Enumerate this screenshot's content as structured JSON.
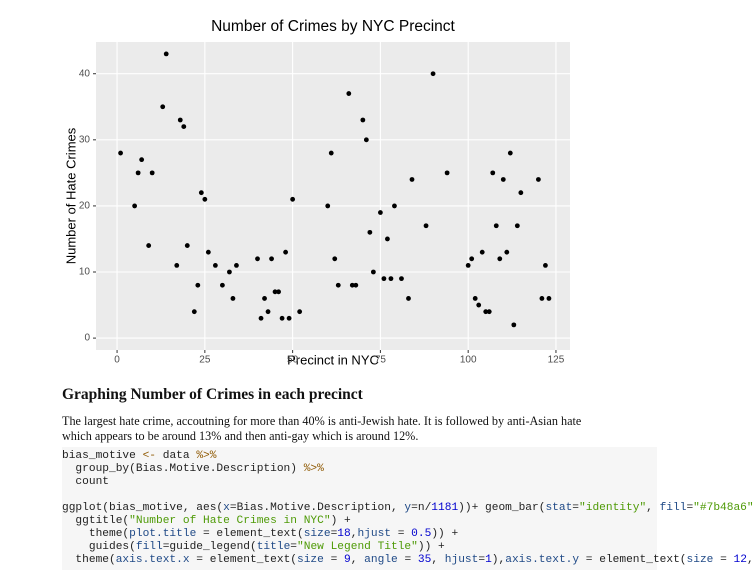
{
  "chart_data": {
    "type": "scatter",
    "title": "Number of Crimes by NYC Precinct",
    "x_label": "Precinct in NYC",
    "y_label": "Number of Hate Crimes",
    "x": [
      1,
      5,
      6,
      7,
      9,
      10,
      13,
      14,
      17,
      18,
      19,
      20,
      22,
      23,
      24,
      25,
      26,
      28,
      30,
      32,
      33,
      34,
      40,
      41,
      42,
      43,
      44,
      45,
      46,
      47,
      48,
      49,
      50,
      52,
      60,
      61,
      62,
      63,
      66,
      67,
      68,
      70,
      71,
      72,
      73,
      75,
      76,
      77,
      78,
      79,
      81,
      83,
      84,
      88,
      90,
      94,
      100,
      101,
      102,
      103,
      104,
      105,
      106,
      107,
      108,
      109,
      110,
      111,
      112,
      113,
      114,
      115,
      120,
      121,
      122,
      123
    ],
    "y": [
      28,
      20,
      25,
      27,
      14,
      25,
      35,
      43,
      11,
      33,
      32,
      14,
      4,
      8,
      22,
      21,
      13,
      11,
      8,
      10,
      6,
      11,
      12,
      3,
      6,
      4,
      12,
      7,
      7,
      3,
      13,
      3,
      21,
      4,
      20,
      28,
      12,
      8,
      37,
      8,
      8,
      33,
      30,
      16,
      10,
      19,
      9,
      15,
      9,
      20,
      9,
      6,
      24,
      17,
      40,
      25,
      11,
      12,
      6,
      5,
      13,
      4,
      4,
      25,
      17,
      12,
      24,
      13,
      28,
      2,
      17,
      22,
      24,
      6,
      11,
      6
    ],
    "color": "#000000",
    "xlim": [
      -6,
      129
    ],
    "ylim": [
      -1.8,
      44.8
    ],
    "xticks": [
      0,
      25,
      50,
      75,
      100,
      125
    ],
    "yticks": [
      0,
      10,
      20,
      30,
      40
    ],
    "grid": true
  },
  "section": {
    "heading": "Graphing Number of Crimes in each precinct",
    "paragraph": "The largest hate crime, accoutning for more than 40% is anti-Jewish hate. It is followed by anti-Asian hate which appears to be around 13% and then anti-gay which is around 12%."
  },
  "code": {
    "blocks": [
      [
        "bias_motive <- data %>%",
        "  group_by(Bias.Motive.Description) %>%",
        "  count"
      ],
      [
        "ggplot(bias_motive, aes(x=Bias.Motive.Description, y=n/1181))+ geom_bar(stat=\"identity\", fill=\"#7b48a6\"",
        "  ggtitle(\"Number of Hate Crimes in NYC\") +",
        "    theme(plot.title = element_text(size=18,hjust = 0.5)) +",
        "    guides(fill=guide_legend(title=\"New Legend Title\")) +",
        "  theme(axis.text.x = element_text(size = 9, angle = 35, hjust=1),axis.text.y = element_text(size = 12,"
      ]
    ]
  }
}
